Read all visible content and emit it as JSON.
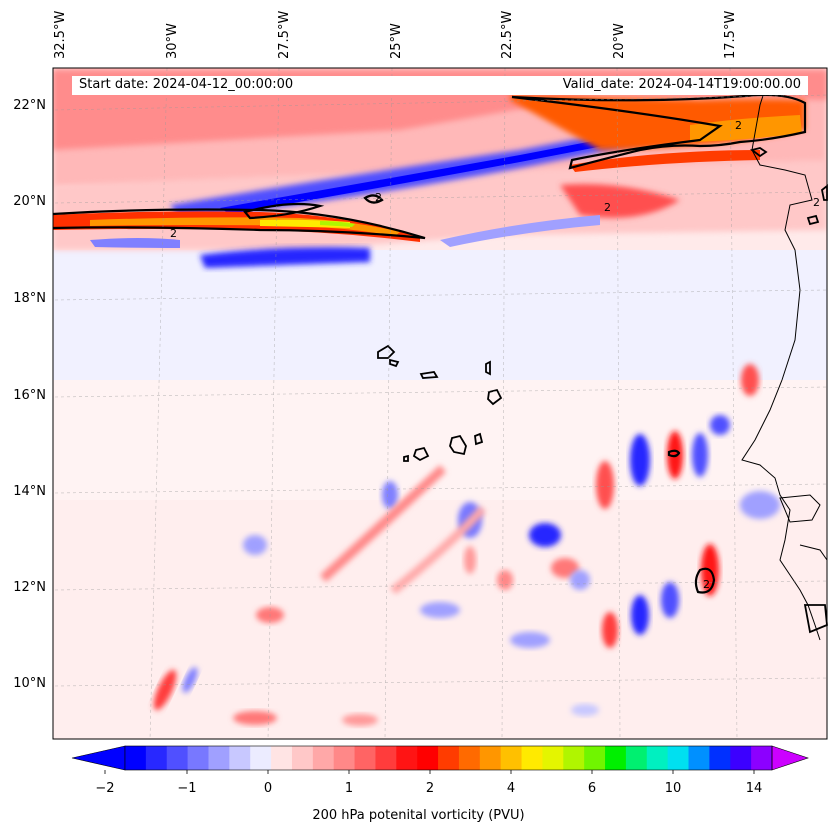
{
  "header": {
    "start_date": "Start date: 2024-04-12_00:00:00",
    "valid_date": "Valid_date: 2024-04-14T19:00:00.00"
  },
  "axes": {
    "lon_labels": [
      "32.5°W",
      "30°W",
      "27.5°W",
      "25°W",
      "22.5°W",
      "20°W",
      "17.5°W"
    ],
    "lat_labels": [
      "22°N",
      "20°N",
      "18°N",
      "16°N",
      "14°N",
      "12°N",
      "10°N"
    ]
  },
  "contour_label": "2",
  "colorbar": {
    "label": "200 hPa potenital vorticity (PVU)",
    "ticks": [
      "−2",
      "−1",
      "0",
      "1",
      "2",
      "4",
      "6",
      "10",
      "14"
    ],
    "colors": [
      "#0000ff",
      "#2828ff",
      "#5050ff",
      "#7878ff",
      "#a0a0ff",
      "#c8c8ff",
      "#ececff",
      "#ffe4e4",
      "#ffc8c8",
      "#ffa8a8",
      "#ff8888",
      "#ff6464",
      "#ff3c3c",
      "#ff1414",
      "#ff0000",
      "#ff3c00",
      "#ff6a00",
      "#ff9600",
      "#ffc000",
      "#ffea00",
      "#e4f500",
      "#b0f500",
      "#70f500",
      "#00f000",
      "#00f070",
      "#00f0c0",
      "#00e0f0",
      "#0090ff",
      "#0030ff",
      "#3c00ff",
      "#8c00ff"
    ],
    "over_color": "#cc00ff",
    "under_color": "#0000ff"
  }
}
